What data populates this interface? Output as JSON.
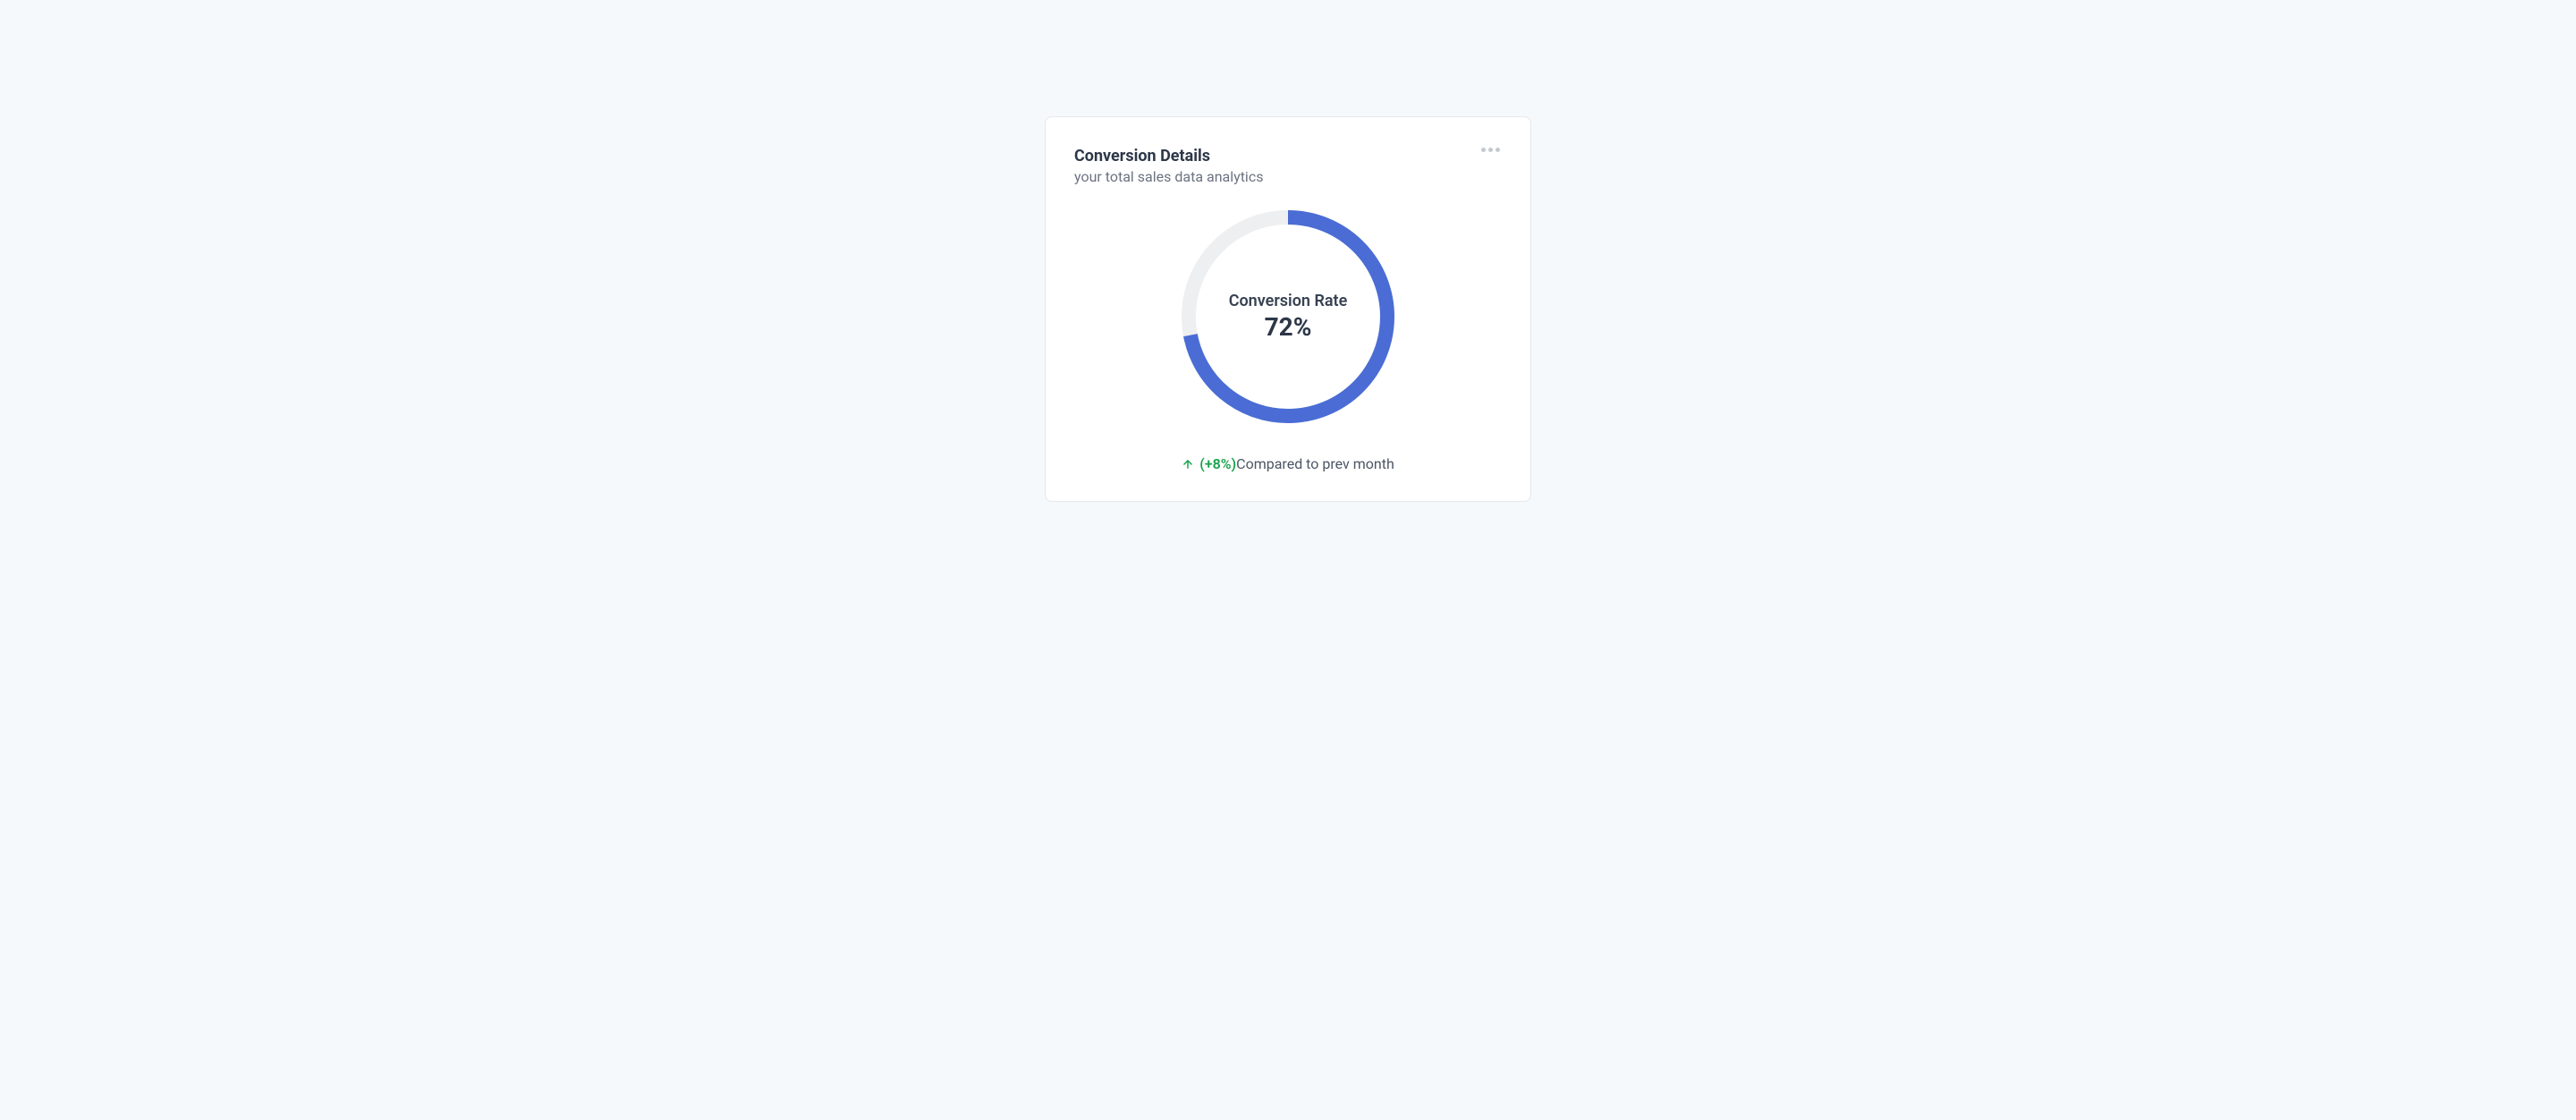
{
  "page": {
    "background_color": "#f5f9fc"
  },
  "card": {
    "title": "Conversion Details",
    "subtitle": "your total sales data analytics",
    "border_color": "#e5e7eb",
    "background_color": "#ffffff"
  },
  "chart": {
    "type": "donut",
    "label": "Conversion Rate",
    "value_text": "72%",
    "value_percent": 72,
    "ring_color": "#4a6cd4",
    "track_color": "#eeeff1",
    "stroke_width": 16,
    "diameter": 238,
    "label_color": "#374151",
    "value_color": "#2d3748",
    "label_fontsize": 18,
    "value_fontsize": 28
  },
  "footer": {
    "delta_text": "(+8%)",
    "compare_text": "Compared to prev month",
    "delta_color": "#16a34a",
    "compare_color": "#4b5563",
    "icon": "arrow-up"
  },
  "menu_icon": {
    "dot_color": "#c4c9d0"
  }
}
